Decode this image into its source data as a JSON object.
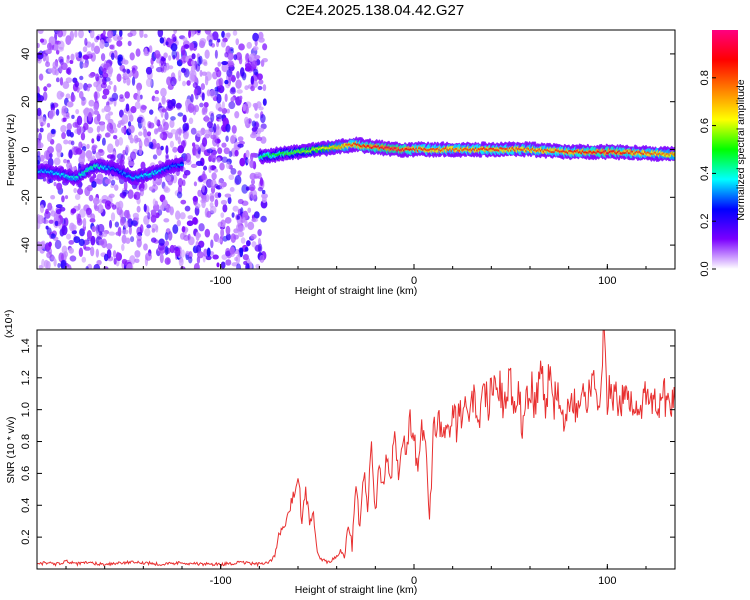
{
  "title": "C2E4.2025.138.04.42.G27",
  "colors": {
    "snr_line": "#e83030",
    "frame": "#000000"
  },
  "chart_data": [
    {
      "type": "heatmap",
      "xlabel": "Height of straight line (km)",
      "ylabel": "Frequency (Hz)",
      "xlim": [
        -195,
        135
      ],
      "ylim": [
        -50,
        50
      ],
      "xticks": [
        -100,
        0,
        100
      ],
      "xtick_labels": [
        "-100",
        "0",
        "100"
      ],
      "yticks": [
        -40,
        -20,
        0,
        20,
        40
      ],
      "ytick_labels": [
        "-40",
        "-20",
        "0",
        "20",
        "40"
      ],
      "colorbar": {
        "label": "Normalized spectral amplitude",
        "range": [
          0,
          1
        ],
        "ticks": [
          0.0,
          0.2,
          0.4,
          0.6,
          0.8
        ],
        "tick_labels": [
          "0.0",
          "0.2",
          "0.4",
          "0.6",
          "0.8"
        ],
        "colormap": [
          "#ffffff",
          "#7b00ff",
          "#0000ff",
          "#00ffff",
          "#00ff00",
          "#ffff00",
          "#ff8000",
          "#ff0000",
          "#ff0080"
        ]
      },
      "ridge": {
        "x": [
          -190,
          -175,
          -165,
          -155,
          -145,
          -135,
          -125,
          -80,
          -70,
          -60,
          -50,
          -40,
          -30,
          -20,
          -10,
          0,
          20,
          40,
          60,
          80,
          100,
          135
        ],
        "frequency": [
          -9,
          -12,
          -7,
          -8,
          -12,
          -10,
          -7,
          -3,
          -2,
          -1,
          0,
          1,
          2,
          1,
          0,
          0,
          0,
          0,
          0,
          -1,
          -1,
          -2
        ],
        "amplitude": [
          0.35,
          0.4,
          0.45,
          0.3,
          0.35,
          0.4,
          0.3,
          0.45,
          0.5,
          0.55,
          0.6,
          0.7,
          0.85,
          0.9,
          0.95,
          0.85,
          0.8,
          0.85,
          0.8,
          0.85,
          0.9,
          0.75
        ]
      }
    },
    {
      "type": "line",
      "xlabel": "Height of straight line (km)",
      "ylabel": "SNR (10 * v/v)",
      "y_multiplier": "(x10⁴)",
      "xlim": [
        -195,
        135
      ],
      "ylim": [
        0,
        1.5
      ],
      "xticks": [
        -100,
        0,
        100
      ],
      "xtick_labels": [
        "-100",
        "0",
        "100"
      ],
      "yticks": [
        0.2,
        0.4,
        0.6,
        0.8,
        1.0,
        1.2,
        1.4
      ],
      "ytick_labels": [
        "0.2",
        "0.4",
        "0.6",
        "0.8",
        "1.0",
        "1.2",
        "1.4"
      ],
      "series": [
        {
          "x": [
            -195,
            -190,
            -185,
            -180,
            -175,
            -170,
            -160,
            -150,
            -140,
            -130,
            -120,
            -110,
            -100,
            -90,
            -80,
            -75,
            -72,
            -70,
            -66,
            -64,
            -62,
            -60,
            -58,
            -56,
            -54,
            -52,
            -50,
            -48,
            -46,
            -44,
            -42,
            -40,
            -38,
            -36,
            -34,
            -32,
            -30,
            -28,
            -26,
            -24,
            -22,
            -20,
            -18,
            -16,
            -14,
            -12,
            -10,
            -8,
            -6,
            -4,
            -2,
            0,
            2,
            4,
            6,
            8,
            10,
            12,
            14,
            16,
            18,
            20,
            22,
            24,
            26,
            28,
            30,
            32,
            34,
            36,
            38,
            40,
            42,
            44,
            46,
            48,
            50,
            52,
            54,
            56,
            58,
            60,
            62,
            64,
            66,
            68,
            70,
            72,
            74,
            76,
            78,
            80,
            82,
            84,
            86,
            88,
            90,
            92,
            94,
            96,
            98,
            100,
            102,
            104,
            106,
            110,
            115,
            120,
            125,
            130,
            135
          ],
          "y": [
            0.03,
            0.04,
            0.03,
            0.05,
            0.03,
            0.04,
            0.03,
            0.04,
            0.04,
            0.03,
            0.04,
            0.03,
            0.03,
            0.04,
            0.03,
            0.04,
            0.08,
            0.22,
            0.3,
            0.42,
            0.5,
            0.62,
            0.3,
            0.5,
            0.3,
            0.35,
            0.1,
            0.06,
            0.05,
            0.04,
            0.06,
            0.08,
            0.12,
            0.08,
            0.28,
            0.15,
            0.55,
            0.25,
            0.62,
            0.4,
            0.8,
            0.35,
            0.7,
            0.5,
            0.75,
            0.6,
            0.82,
            0.55,
            0.85,
            0.75,
            0.9,
            0.85,
            0.55,
            0.92,
            0.78,
            0.28,
            0.82,
            0.95,
            0.88,
            0.85,
            0.88,
            0.95,
            0.9,
            0.98,
            1.0,
            0.95,
            1.02,
            1.05,
            0.98,
            1.12,
            1.05,
            1.08,
            1.1,
            1.15,
            1.02,
            1.08,
            1.2,
            1.05,
            1.12,
            0.92,
            1.08,
            1.18,
            1.05,
            1.1,
            1.25,
            1.02,
            1.28,
            1.02,
            1.15,
            1.05,
            0.95,
            1.12,
            1.08,
            1.02,
            1.15,
            1.05,
            1.1,
            1.22,
            1.05,
            0.95,
            1.48,
            1.08,
            1.12,
            1.05,
            1.06,
            1.05,
            1.07,
            1.05,
            1.06,
            1.07,
            1.05
          ]
        }
      ]
    }
  ]
}
